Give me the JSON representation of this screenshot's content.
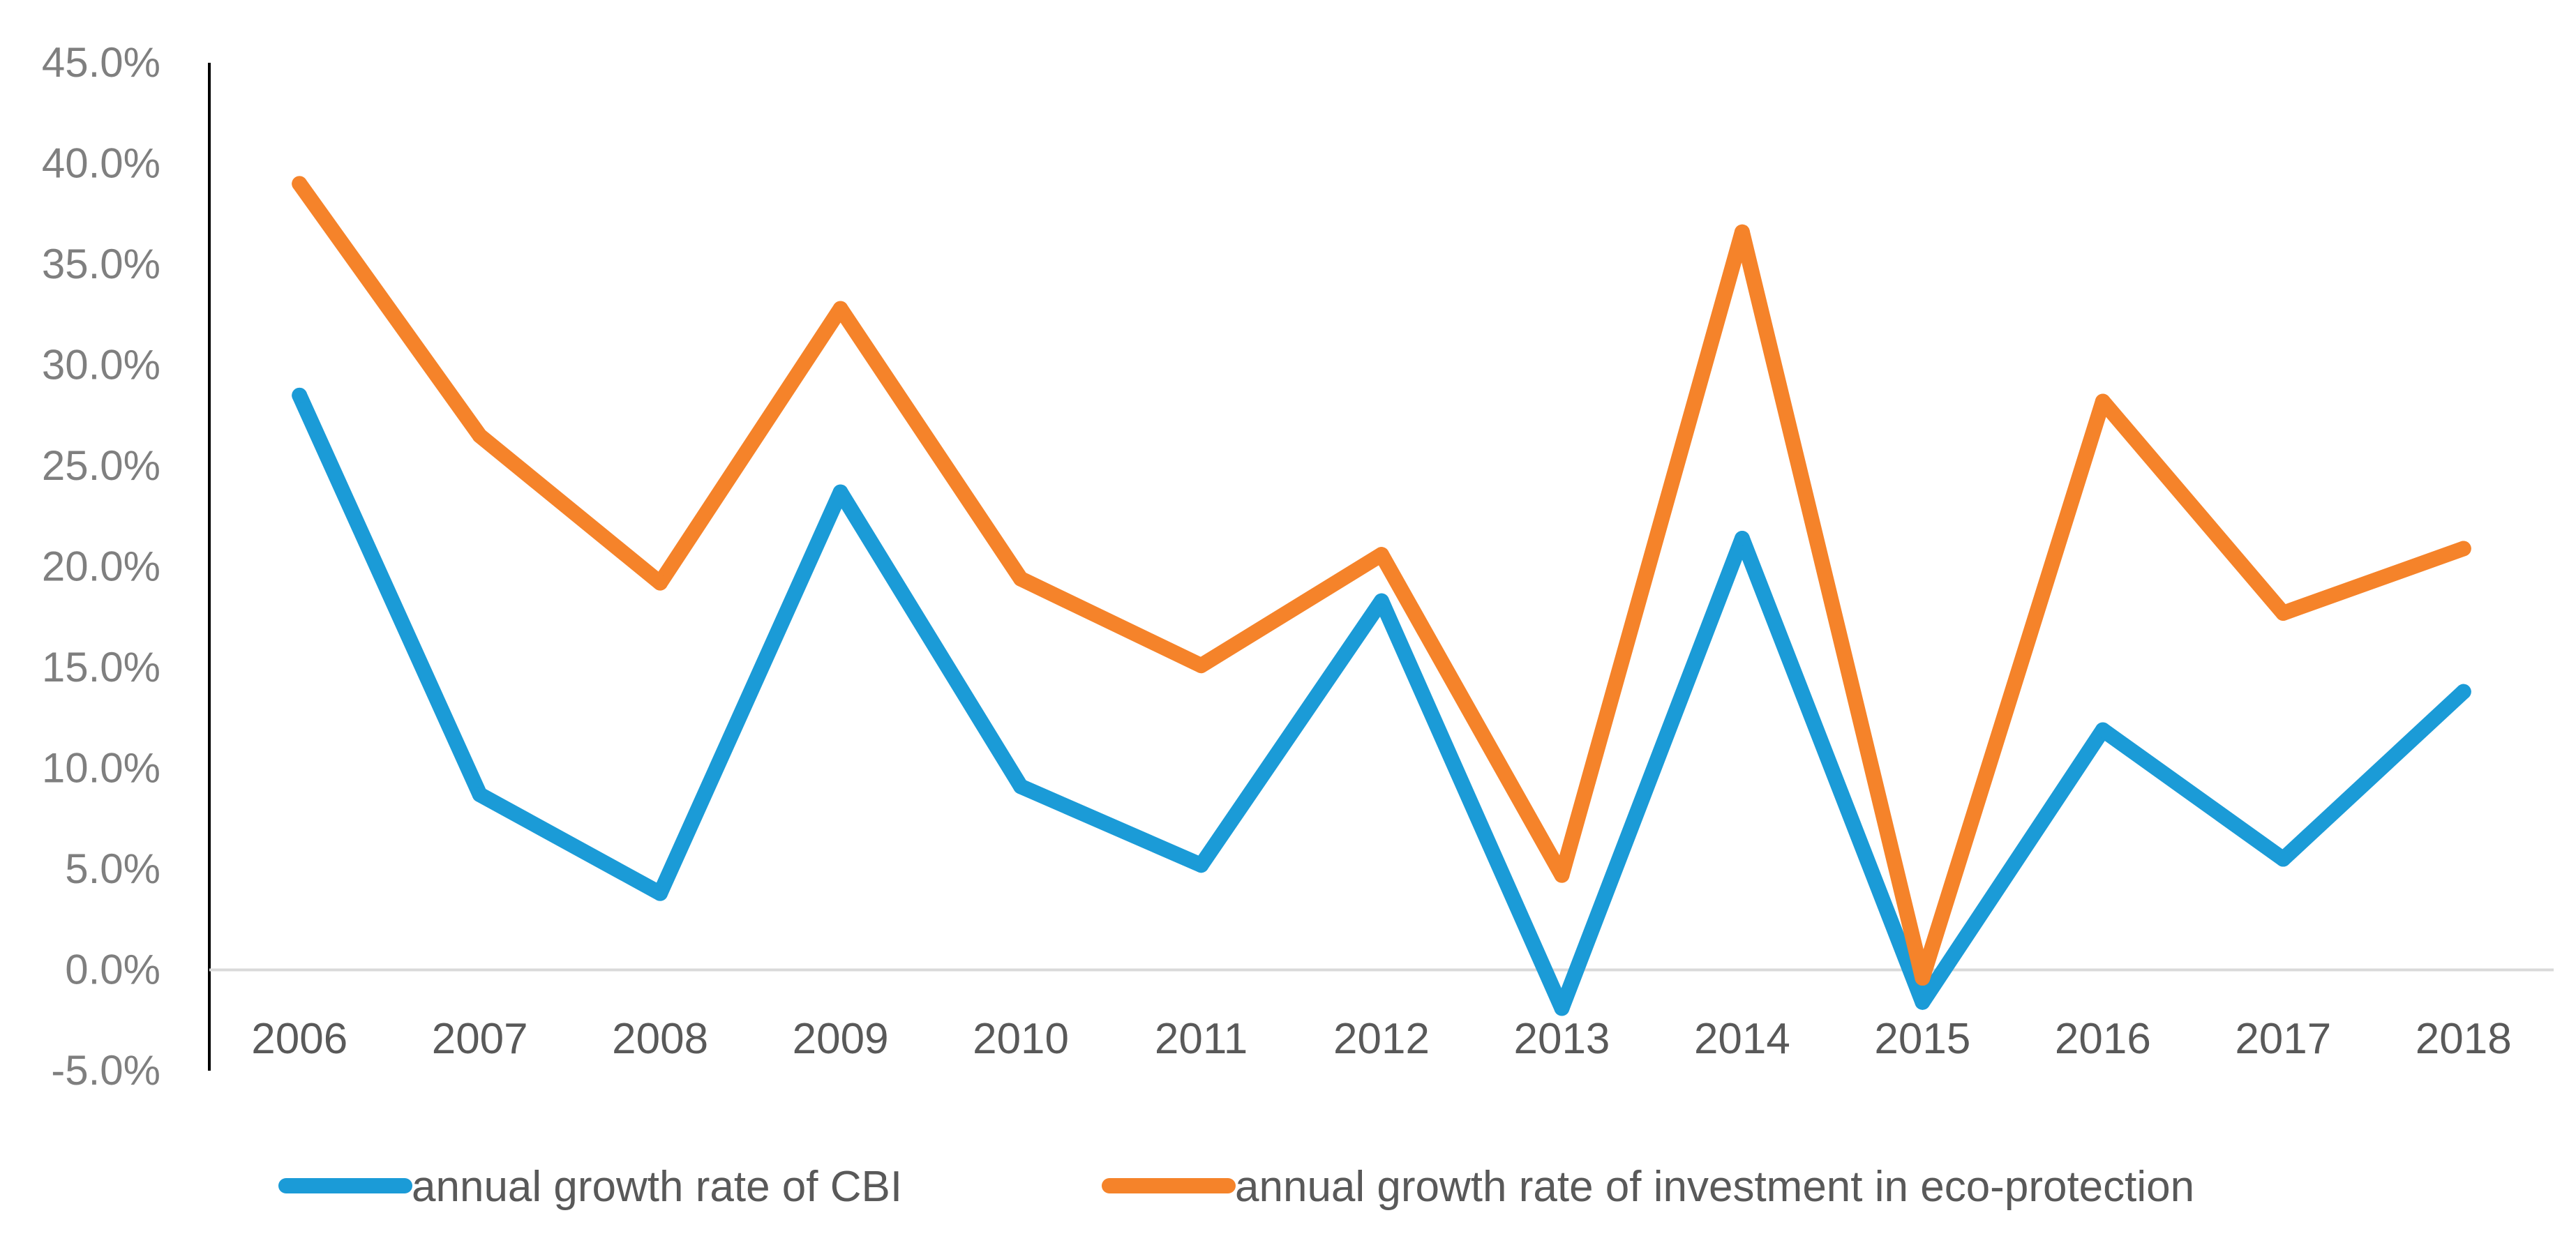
{
  "chart_data": {
    "type": "line",
    "title": "",
    "xlabel": "",
    "ylabel": "",
    "categories": [
      "2006",
      "2007",
      "2008",
      "2009",
      "2010",
      "2011",
      "2012",
      "2013",
      "2014",
      "2015",
      "2016",
      "2017",
      "2018"
    ],
    "series": [
      {
        "name": "annual growth rate of CBI",
        "color": "#1b9bd7",
        "values": [
          28.5,
          8.7,
          3.8,
          23.7,
          9.1,
          5.2,
          18.3,
          -1.9,
          21.4,
          -1.6,
          11.9,
          5.5,
          13.8
        ]
      },
      {
        "name": "annual growth rate of investment in eco-protection",
        "color": "#f5832a",
        "values": [
          39.0,
          26.5,
          19.2,
          32.8,
          19.4,
          15.1,
          20.6,
          4.7,
          36.6,
          -0.4,
          28.2,
          17.7,
          20.9
        ]
      }
    ],
    "ylim": [
      -5,
      45
    ],
    "yticks": [
      -5,
      0,
      5,
      10,
      15,
      20,
      25,
      30,
      35,
      40,
      45
    ],
    "ytick_labels": [
      "-5.0%",
      "0.0%",
      "5.0%",
      "10.0%",
      "15.0%",
      "20.0%",
      "25.0%",
      "30.0%",
      "35.0%",
      "40.0%",
      "45.0%"
    ],
    "grid": false,
    "legend_position": "bottom"
  }
}
